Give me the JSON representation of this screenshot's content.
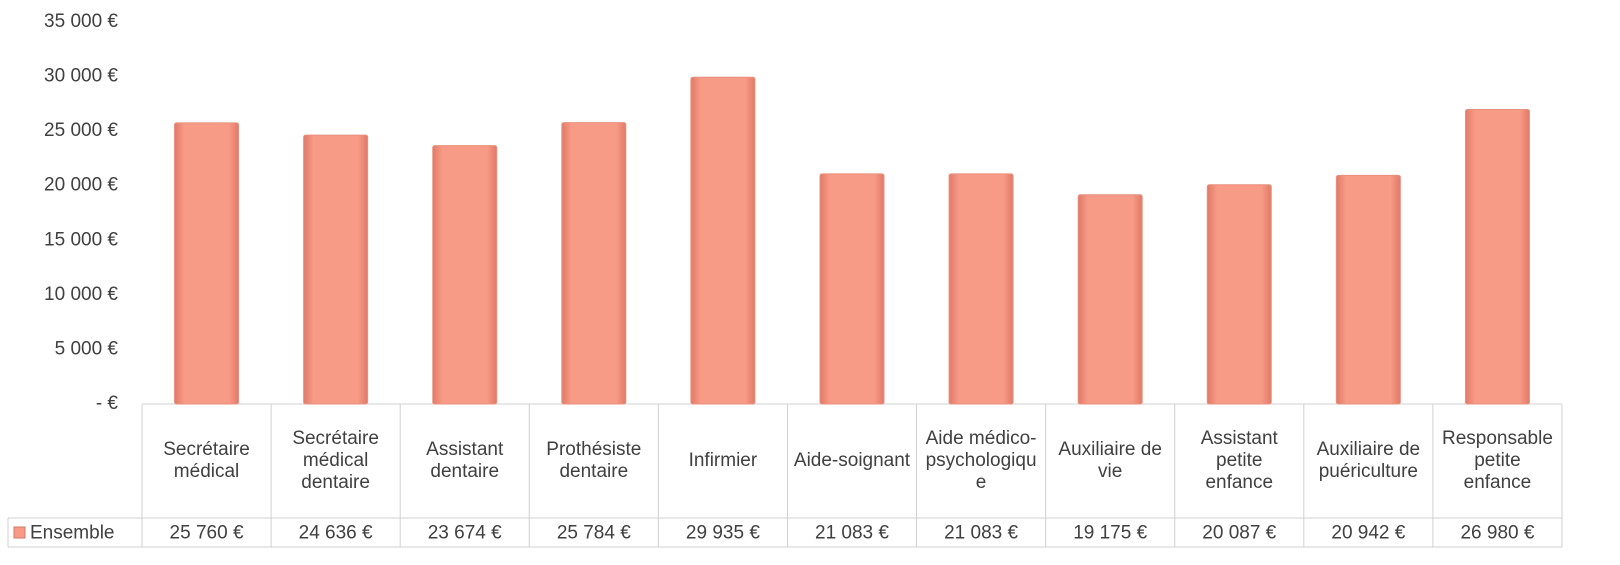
{
  "chart_data": {
    "type": "bar",
    "categories": [
      "Secrétaire médical",
      "Secrétaire médical dentaire",
      "Assistant dentaire",
      "Prothésiste dentaire",
      "Infirmier",
      "Aide-soignant",
      "Aide médico-psychologique",
      "Auxiliaire de vie",
      "Assistant petite enfance",
      "Auxiliaire de puériculture",
      "Responsable petite enfance"
    ],
    "series": [
      {
        "name": "Ensemble",
        "color": "#f79a86",
        "values": [
          25760,
          24636,
          23674,
          25784,
          29935,
          21083,
          21083,
          19175,
          20087,
          20942,
          26980
        ],
        "value_labels": [
          "25 760 €",
          "24 636 €",
          "23 674 €",
          "25 784 €",
          "29 935 €",
          "21 083 €",
          "21 083 €",
          "19 175 €",
          "20 087 €",
          "20 942 €",
          "26 980 €"
        ]
      }
    ],
    "ylim": [
      0,
      35000
    ],
    "yticks": [
      {
        "value": 0,
        "label": "-   €"
      },
      {
        "value": 5000,
        "label": "5 000 €"
      },
      {
        "value": 10000,
        "label": "10 000 €"
      },
      {
        "value": 15000,
        "label": "15 000 €"
      },
      {
        "value": 20000,
        "label": "20 000 €"
      },
      {
        "value": 25000,
        "label": "25 000 €"
      },
      {
        "value": 30000,
        "label": "30 000 €"
      },
      {
        "value": 35000,
        "label": "35 000 €"
      }
    ],
    "data_table": true
  }
}
